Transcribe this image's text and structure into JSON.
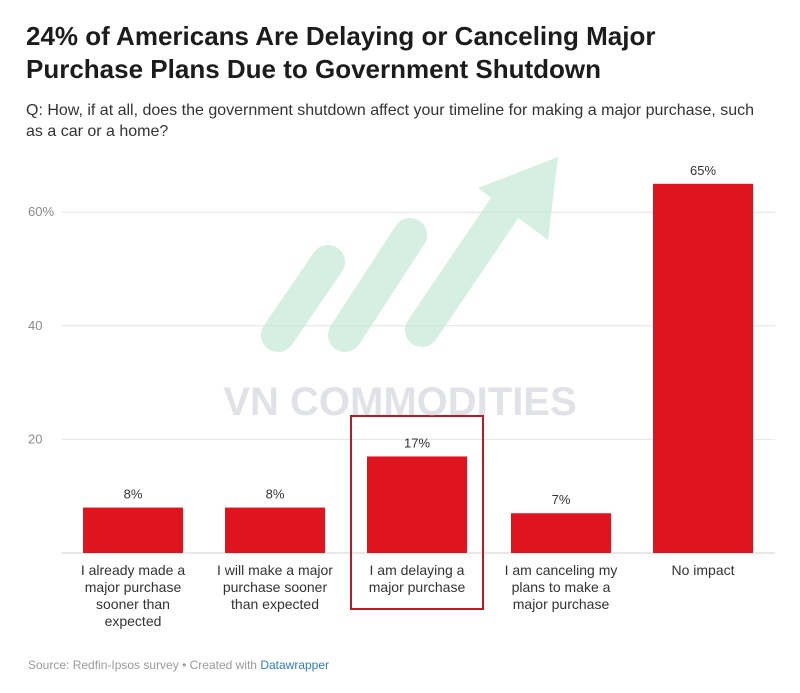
{
  "title": "24% of Americans Are Delaying or Canceling Major Purchase Plans Due to Government Shutdown",
  "subtitle": "Q: How, if at all, does the government shutdown affect your timeline for making a major purchase, such as a car or a home?",
  "source": {
    "text": "Source: Redfin-Ipsos survey • Created with ",
    "credit": "Datawrapper"
  },
  "watermark": {
    "text": "VN COMMODITIES"
  },
  "colors": {
    "bar": "#e0141e",
    "highlight_border": "#c0181f",
    "grid": "#e4e4e4",
    "watermark": "#bfe8d3"
  },
  "chart_data": {
    "type": "bar",
    "categories": [
      [
        "I already made a",
        "major purchase",
        "sooner than",
        "expected"
      ],
      [
        "I will make a major",
        "purchase sooner",
        "than expected"
      ],
      [
        "I am delaying a",
        "major purchase"
      ],
      [
        "I am canceling my",
        "plans to make a",
        "major purchase"
      ],
      [
        "No impact"
      ]
    ],
    "values": [
      8,
      8,
      17,
      7,
      65
    ],
    "value_labels": [
      "8%",
      "8%",
      "17%",
      "7%",
      "65%"
    ],
    "highlighted_index": 2,
    "ylim": [
      0,
      68
    ],
    "yticks": [
      20,
      40,
      60
    ],
    "ytick_labels": [
      "20",
      "40",
      "60%"
    ],
    "grid": true,
    "legend": "none"
  }
}
